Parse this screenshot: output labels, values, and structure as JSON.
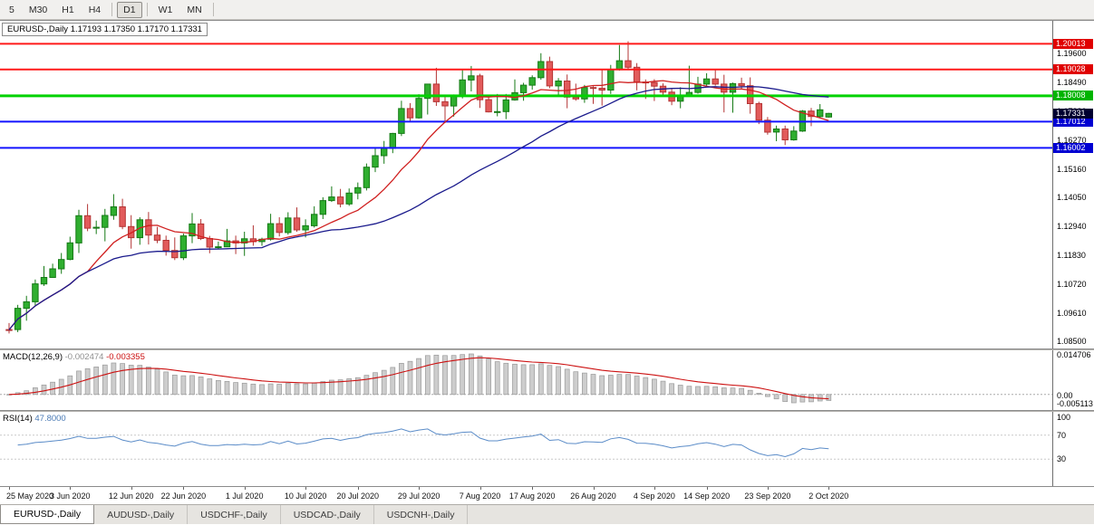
{
  "toolbar": {
    "items": [
      {
        "label": "5"
      },
      {
        "label": "M30"
      },
      {
        "label": "H1"
      },
      {
        "label": "H4"
      },
      {
        "sep": true
      },
      {
        "label": "D1",
        "active": true
      },
      {
        "sep": true
      },
      {
        "label": "W1"
      },
      {
        "label": "MN"
      },
      {
        "sep": true
      }
    ]
  },
  "chart_data": {
    "type": "candlestick",
    "symbol": "EURUSD-",
    "timeframe": "Daily",
    "title": "EURUSD-,Daily",
    "ohlc_text": "1.17193 1.17350 1.17170 1.17331",
    "last": {
      "open": 1.17193,
      "high": 1.1735,
      "low": 1.1717,
      "close": 1.17331
    },
    "y_axis": {
      "max": 1.209,
      "min": 1.0827,
      "labels": [
        "1.19600",
        "1.18490",
        "1.17380",
        "1.16270",
        "1.15160",
        "1.14050",
        "1.12940",
        "1.11830",
        "1.10720",
        "1.09610",
        "1.08500"
      ]
    },
    "date_labels": [
      "25 May 2020",
      "3 Jun 2020",
      "12 Jun 2020",
      "22 Jun 2020",
      "1 Jul 2020",
      "10 Jul 2020",
      "20 Jul 2020",
      "29 Jul 2020",
      "7 Aug 2020",
      "17 Aug 2020",
      "26 Aug 2020",
      "4 Sep 2020",
      "14 Sep 2020",
      "23 Sep 2020",
      "2 Oct 2020"
    ],
    "date_label_indices": [
      0,
      7,
      14,
      20,
      27,
      34,
      40,
      47,
      54,
      60,
      67,
      74,
      80,
      87,
      94
    ],
    "candles": [
      [
        1.09,
        1.0925,
        1.0885,
        1.0899
      ],
      [
        1.09,
        1.0995,
        1.089,
        1.0982
      ],
      [
        1.0982,
        1.103,
        1.0934,
        1.1007
      ],
      [
        1.1007,
        1.1093,
        1.0992,
        1.1076
      ],
      [
        1.1076,
        1.1145,
        1.1068,
        1.1101
      ],
      [
        1.1101,
        1.1154,
        1.1101,
        1.1134
      ],
      [
        1.1134,
        1.1195,
        1.1115,
        1.117
      ],
      [
        1.117,
        1.1258,
        1.1167,
        1.1234
      ],
      [
        1.1234,
        1.1362,
        1.1195,
        1.1339
      ],
      [
        1.1339,
        1.1384,
        1.1279,
        1.1291
      ],
      [
        1.1291,
        1.132,
        1.1268,
        1.1294
      ],
      [
        1.1294,
        1.1365,
        1.124,
        1.134
      ],
      [
        1.134,
        1.1422,
        1.1323,
        1.1373
      ],
      [
        1.1373,
        1.1404,
        1.1287,
        1.1297
      ],
      [
        1.1297,
        1.1341,
        1.1212,
        1.1254
      ],
      [
        1.1254,
        1.1333,
        1.1227,
        1.1323
      ],
      [
        1.1323,
        1.1353,
        1.1228,
        1.1264
      ],
      [
        1.1264,
        1.1296,
        1.1233,
        1.1244
      ],
      [
        1.1244,
        1.1262,
        1.1185,
        1.1205
      ],
      [
        1.1205,
        1.1255,
        1.1168,
        1.1177
      ],
      [
        1.1177,
        1.127,
        1.1168,
        1.1261
      ],
      [
        1.1261,
        1.1349,
        1.1233,
        1.1307
      ],
      [
        1.1307,
        1.1326,
        1.1245,
        1.1251
      ],
      [
        1.1251,
        1.1261,
        1.1194,
        1.1218
      ],
      [
        1.1218,
        1.1239,
        1.1212,
        1.1219
      ],
      [
        1.1219,
        1.1288,
        1.1218,
        1.1242
      ],
      [
        1.1242,
        1.1262,
        1.1191,
        1.1234
      ],
      [
        1.1234,
        1.1277,
        1.1184,
        1.125
      ],
      [
        1.125,
        1.1302,
        1.1223,
        1.1239
      ],
      [
        1.1239,
        1.1254,
        1.1223,
        1.1248
      ],
      [
        1.1248,
        1.1346,
        1.1243,
        1.1308
      ],
      [
        1.1308,
        1.1333,
        1.1259,
        1.1274
      ],
      [
        1.1274,
        1.1352,
        1.1266,
        1.133
      ],
      [
        1.133,
        1.1371,
        1.1277,
        1.1284
      ],
      [
        1.1284,
        1.1325,
        1.1255,
        1.13
      ],
      [
        1.13,
        1.1375,
        1.1293,
        1.1344
      ],
      [
        1.1344,
        1.141,
        1.1326,
        1.1397
      ],
      [
        1.1397,
        1.1452,
        1.1392,
        1.1411
      ],
      [
        1.1411,
        1.1442,
        1.1371,
        1.1384
      ],
      [
        1.1384,
        1.1444,
        1.1377,
        1.1426
      ],
      [
        1.1426,
        1.1467,
        1.1402,
        1.1447
      ],
      [
        1.1447,
        1.154,
        1.1436,
        1.1526
      ],
      [
        1.1526,
        1.1601,
        1.1507,
        1.157
      ],
      [
        1.157,
        1.1627,
        1.1539,
        1.1598
      ],
      [
        1.1598,
        1.1658,
        1.158,
        1.1656
      ],
      [
        1.1656,
        1.1782,
        1.1646,
        1.1752
      ],
      [
        1.1752,
        1.1773,
        1.17,
        1.1716
      ],
      [
        1.1716,
        1.1807,
        1.1713,
        1.1791
      ],
      [
        1.1791,
        1.1847,
        1.1729,
        1.1846
      ],
      [
        1.1846,
        1.1909,
        1.1762,
        1.1778
      ],
      [
        1.1778,
        1.1798,
        1.1696,
        1.1762
      ],
      [
        1.1762,
        1.1806,
        1.1721,
        1.1803
      ],
      [
        1.1803,
        1.1905,
        1.1791,
        1.1862
      ],
      [
        1.1862,
        1.1916,
        1.1818,
        1.1878
      ],
      [
        1.1878,
        1.1886,
        1.1754,
        1.1786
      ],
      [
        1.1786,
        1.1798,
        1.1737,
        1.1739
      ],
      [
        1.1739,
        1.1808,
        1.1722,
        1.174
      ],
      [
        1.174,
        1.1808,
        1.1711,
        1.1785
      ],
      [
        1.1785,
        1.1864,
        1.1782,
        1.1813
      ],
      [
        1.1813,
        1.1851,
        1.1782,
        1.1842
      ],
      [
        1.1842,
        1.188,
        1.1825,
        1.1871
      ],
      [
        1.1871,
        1.1965,
        1.1863,
        1.1933
      ],
      [
        1.1933,
        1.1952,
        1.183,
        1.1839
      ],
      [
        1.1839,
        1.1869,
        1.1803,
        1.1858
      ],
      [
        1.1858,
        1.1883,
        1.1753,
        1.1796
      ],
      [
        1.1796,
        1.1848,
        1.1782,
        1.1789
      ],
      [
        1.1789,
        1.1843,
        1.1774,
        1.1833
      ],
      [
        1.1833,
        1.1838,
        1.177,
        1.183
      ],
      [
        1.183,
        1.1902,
        1.1763,
        1.1823
      ],
      [
        1.1823,
        1.192,
        1.1808,
        1.1903
      ],
      [
        1.1903,
        1.1997,
        1.1898,
        1.1936
      ],
      [
        1.1936,
        1.2011,
        1.1901,
        1.1911
      ],
      [
        1.1911,
        1.1927,
        1.1822,
        1.1854
      ],
      [
        1.1854,
        1.1864,
        1.1789,
        1.1852
      ],
      [
        1.1852,
        1.1865,
        1.1781,
        1.1838
      ],
      [
        1.1838,
        1.1849,
        1.1804,
        1.1815
      ],
      [
        1.1815,
        1.1827,
        1.1765,
        1.178
      ],
      [
        1.178,
        1.1834,
        1.1753,
        1.1802
      ],
      [
        1.1802,
        1.1917,
        1.18,
        1.1814
      ],
      [
        1.1814,
        1.1874,
        1.1809,
        1.1846
      ],
      [
        1.1846,
        1.1888,
        1.184,
        1.1866
      ],
      [
        1.1866,
        1.19,
        1.184,
        1.1846
      ],
      [
        1.1846,
        1.1882,
        1.1737,
        1.1815
      ],
      [
        1.1815,
        1.1852,
        1.1736,
        1.1848
      ],
      [
        1.1848,
        1.1871,
        1.1827,
        1.184
      ],
      [
        1.184,
        1.1872,
        1.1732,
        1.1771
      ],
      [
        1.1771,
        1.1778,
        1.1692,
        1.1707
      ],
      [
        1.1707,
        1.1719,
        1.1651,
        1.1661
      ],
      [
        1.1661,
        1.1686,
        1.1626,
        1.1673
      ],
      [
        1.1673,
        1.1686,
        1.1611,
        1.1631
      ],
      [
        1.1631,
        1.1684,
        1.1628,
        1.1665
      ],
      [
        1.1665,
        1.1746,
        1.1662,
        1.1742
      ],
      [
        1.1742,
        1.1754,
        1.1684,
        1.1721
      ],
      [
        1.1721,
        1.1769,
        1.1717,
        1.1747
      ],
      [
        1.17193,
        1.1735,
        1.1717,
        1.17331
      ]
    ],
    "colors": {
      "bull_fill": "#2fae2f",
      "bull_border": "#157a15",
      "bear_fill": "#e25b5b",
      "bear_border": "#b33434"
    },
    "moving_averages": [
      {
        "period": 10,
        "color": "#d02020"
      },
      {
        "period": 30,
        "color": "#1a1a8c"
      }
    ],
    "hlines": [
      {
        "price": 1.20013,
        "label": "1.20013",
        "color": "#ff1a1a",
        "line_width": 2,
        "badge_color": "#e00000"
      },
      {
        "price": 1.19028,
        "label": "1.19028",
        "color": "#ff1a1a",
        "line_width": 2,
        "badge_color": "#e00000"
      },
      {
        "price": 1.18008,
        "label": "1.18008",
        "color": "#00d200",
        "line_width": 3,
        "badge_color": "#00b400"
      },
      {
        "price": 1.17012,
        "label": "1.17012",
        "color": "#1414ff",
        "line_width": 2,
        "badge_color": "#0000d2"
      },
      {
        "price": 1.16002,
        "label": "1.16002",
        "color": "#1414ff",
        "line_width": 2,
        "badge_color": "#0000d2"
      }
    ],
    "current_price": {
      "price": 1.17331,
      "label": "1.17331",
      "badge_color": "#000030"
    },
    "macd": {
      "name": "MACD(12,26,9)",
      "value_text": "-0.002474",
      "signal_text": "-0.003355",
      "fast": 12,
      "slow": 26,
      "signal": 9,
      "histogram_fill": "#cdcdcd",
      "histogram_border": "#9a9a9a",
      "signal_color": "#cc1111",
      "scale": {
        "top": "0.014706",
        "zero": "0.00",
        "bottom": "-0.005113"
      }
    },
    "rsi": {
      "name": "RSI(14)",
      "value_text": "47.8000",
      "period": 14,
      "line_color": "#5b8cc8",
      "levels": [
        {
          "label": "100",
          "value": 100
        },
        {
          "label": "70",
          "value": 70
        },
        {
          "label": "30",
          "value": 30
        }
      ]
    }
  },
  "tabs": [
    {
      "label": "EURUSD-,Daily",
      "active": true
    },
    {
      "label": "AUDUSD-,Daily"
    },
    {
      "label": "USDCHF-,Daily"
    },
    {
      "label": "USDCAD-,Daily"
    },
    {
      "label": "USDCNH-,Daily"
    }
  ]
}
